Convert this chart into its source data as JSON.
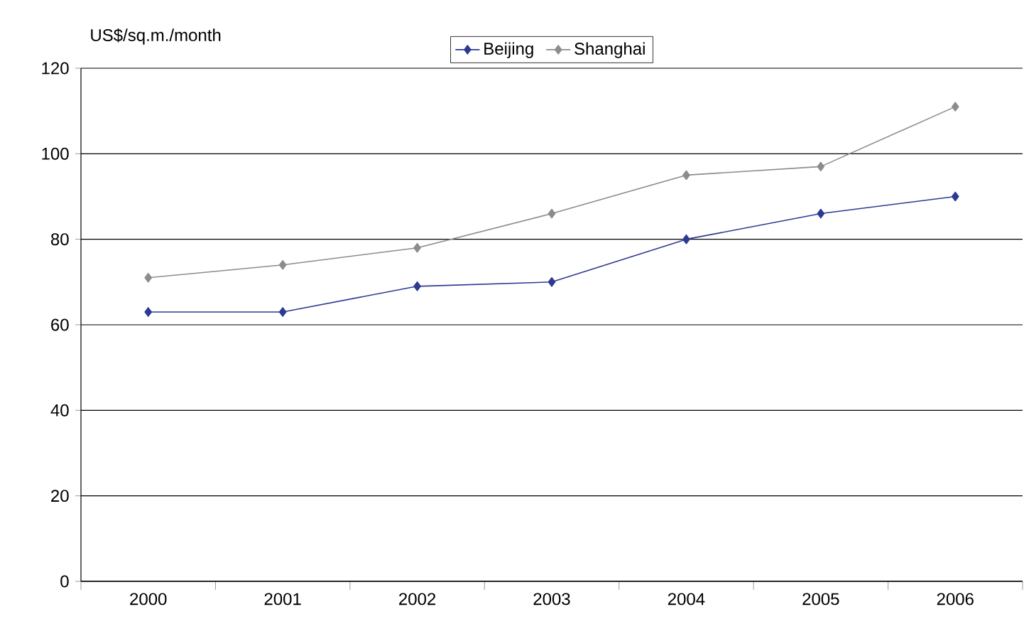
{
  "chart_data": {
    "type": "line",
    "ylabel": "US$/sq.m./month",
    "categories": [
      "2000",
      "2001",
      "2002",
      "2003",
      "2004",
      "2005",
      "2006"
    ],
    "series": [
      {
        "name": "Beijing",
        "color": "#2e3a92",
        "values": [
          63,
          63,
          69,
          70,
          80,
          86,
          90
        ]
      },
      {
        "name": "Shanghai",
        "color": "#8c8c8c",
        "values": [
          71,
          74,
          78,
          86,
          95,
          97,
          111
        ]
      }
    ],
    "ylim": [
      0,
      120
    ],
    "yticks": [
      0,
      20,
      40,
      60,
      80,
      100,
      120
    ],
    "grid": "y",
    "legend": "top",
    "marker": "diamond",
    "line_style": "solid"
  }
}
